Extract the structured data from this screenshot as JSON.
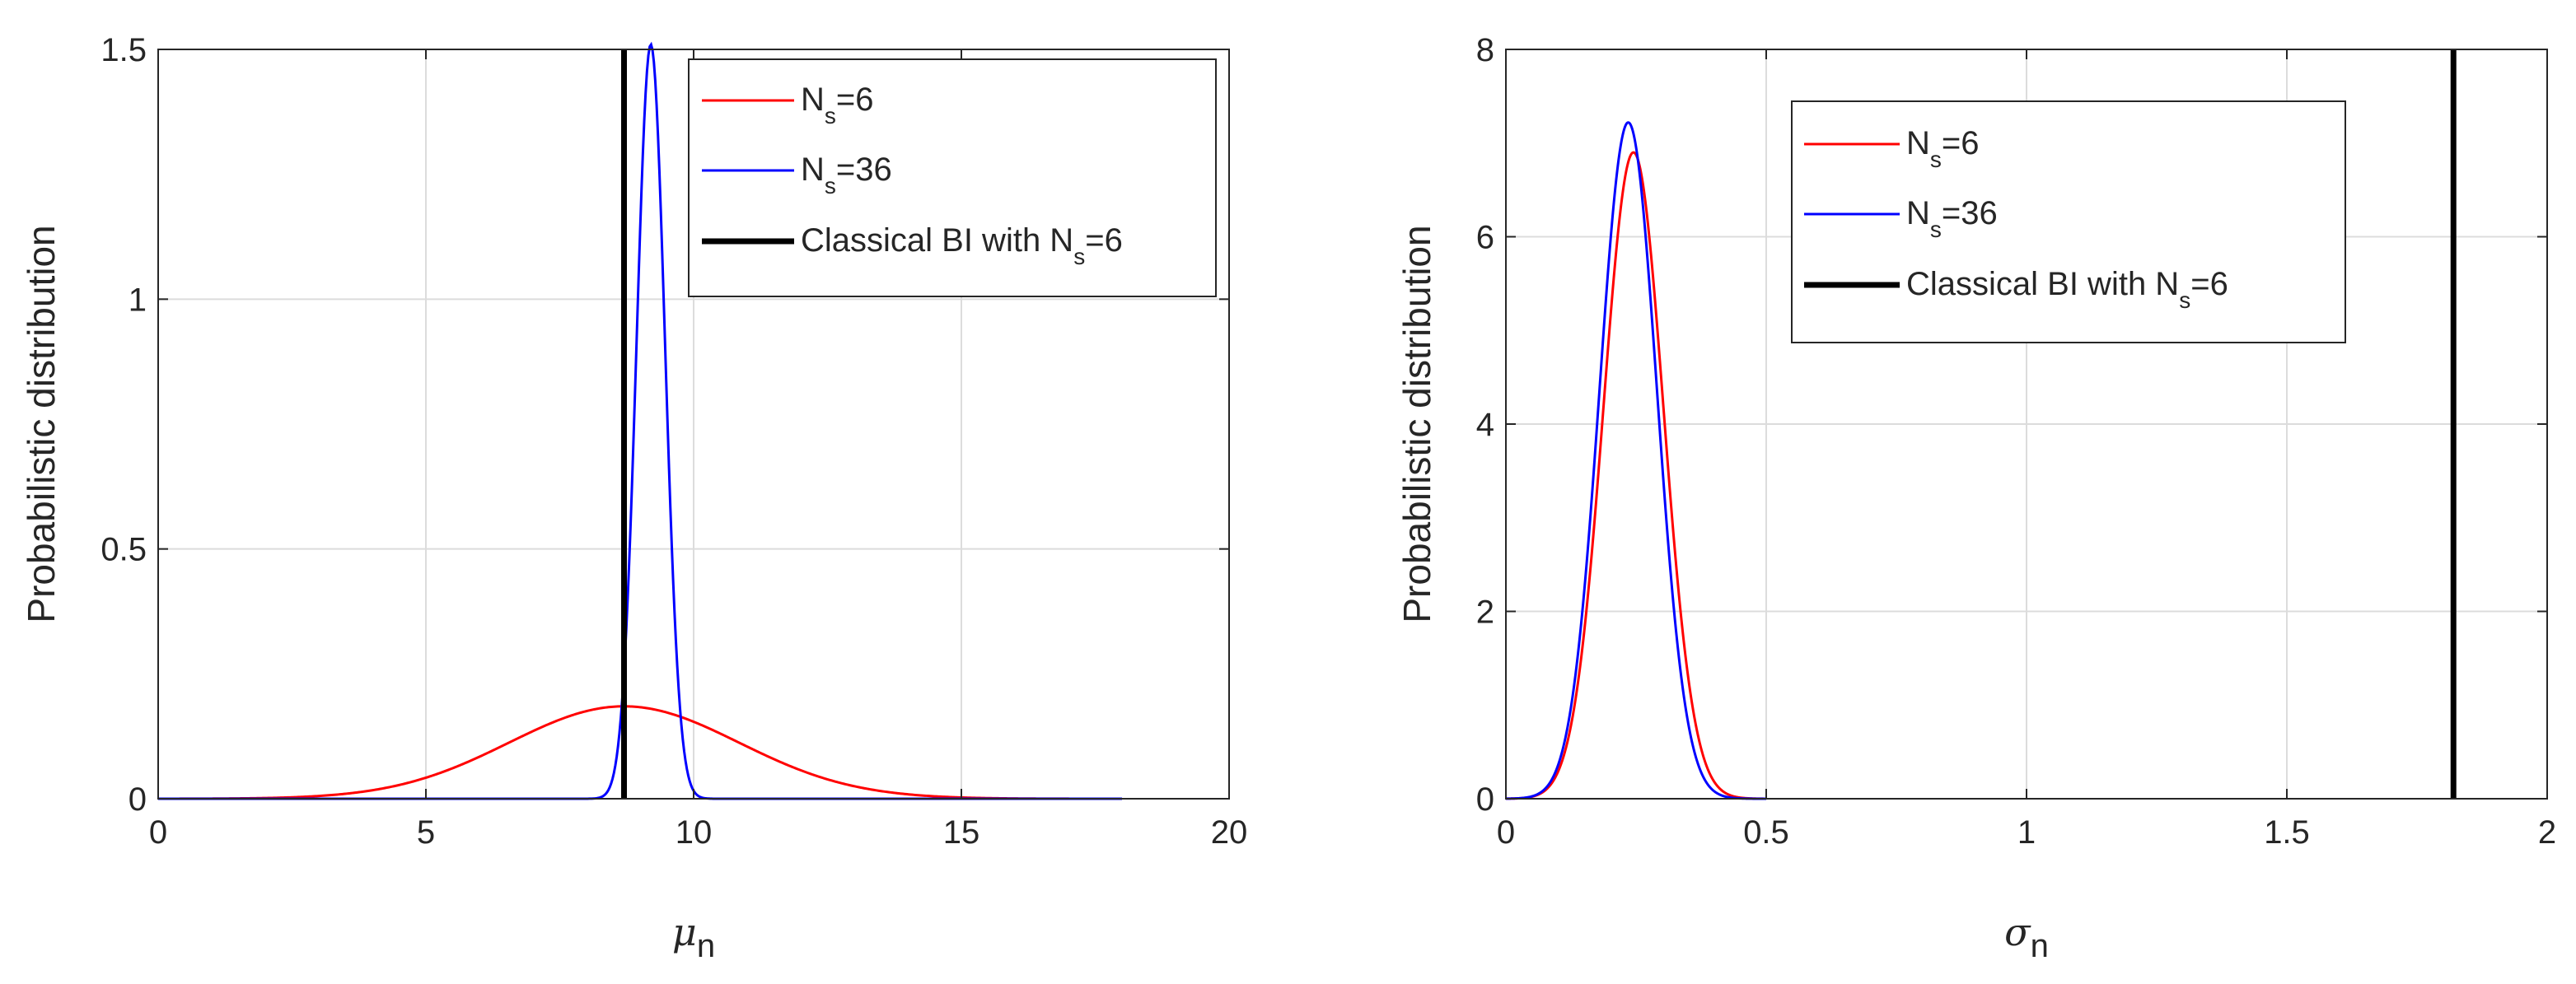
{
  "chart_data": [
    {
      "type": "line",
      "title": "",
      "xlabel": "μ",
      "xlabel_subscript": "n",
      "ylabel": "Probabilistic distribution",
      "xlim": [
        0,
        20
      ],
      "ylim": [
        0,
        1.5
      ],
      "xticks": [
        0,
        5,
        10,
        15,
        20
      ],
      "yticks": [
        0,
        0.5,
        1,
        1.5
      ],
      "xtick_labels": [
        "0",
        "5",
        "10",
        "15",
        "20"
      ],
      "ytick_labels": [
        "0",
        "0.5",
        "1",
        "1.5"
      ],
      "grid": true,
      "legend_position": "top-right",
      "series": [
        {
          "name": "N",
          "name_subscript": "s",
          "name_suffix": "=6",
          "color": "#ff0000",
          "kind": "gaussian",
          "mean": 8.7,
          "std": 2.15,
          "peak": 0.185,
          "range": [
            0,
            18
          ]
        },
        {
          "name": "N",
          "name_subscript": "s",
          "name_suffix": "=36",
          "color": "#0000ff",
          "kind": "gaussian",
          "mean": 9.2,
          "std": 0.265,
          "peak": 1.51,
          "range": [
            0,
            18
          ]
        },
        {
          "name": "Classical BI with N",
          "name_subscript": "s",
          "name_suffix": "=6",
          "color": "#000000",
          "kind": "vline",
          "x": 8.7,
          "y_top": 1.5
        }
      ]
    },
    {
      "type": "line",
      "title": "",
      "xlabel": "σ",
      "xlabel_subscript": "n",
      "ylabel": "Probabilistic distribution",
      "xlim": [
        0,
        2
      ],
      "ylim": [
        0,
        8
      ],
      "xticks": [
        0,
        0.5,
        1,
        1.5,
        2
      ],
      "yticks": [
        0,
        2,
        4,
        6,
        8
      ],
      "xtick_labels": [
        "0",
        "0.5",
        "1",
        "1.5",
        "2"
      ],
      "ytick_labels": [
        "0",
        "2",
        "4",
        "6",
        "8"
      ],
      "grid": true,
      "legend_position": "top-right",
      "series": [
        {
          "name": "N",
          "name_subscript": "s",
          "name_suffix": "=6",
          "color": "#ff0000",
          "kind": "gaussian",
          "mean": 0.245,
          "std": 0.0575,
          "peak": 6.9,
          "range": [
            0,
            0.5
          ]
        },
        {
          "name": "N",
          "name_subscript": "s",
          "name_suffix": "=36",
          "color": "#0000ff",
          "kind": "gaussian",
          "mean": 0.235,
          "std": 0.055,
          "peak": 7.22,
          "range": [
            0,
            0.5
          ]
        },
        {
          "name": "Classical BI with N",
          "name_subscript": "s",
          "name_suffix": "=6",
          "color": "#000000",
          "kind": "vline",
          "x": 1.82,
          "y_top": 8
        }
      ]
    }
  ]
}
